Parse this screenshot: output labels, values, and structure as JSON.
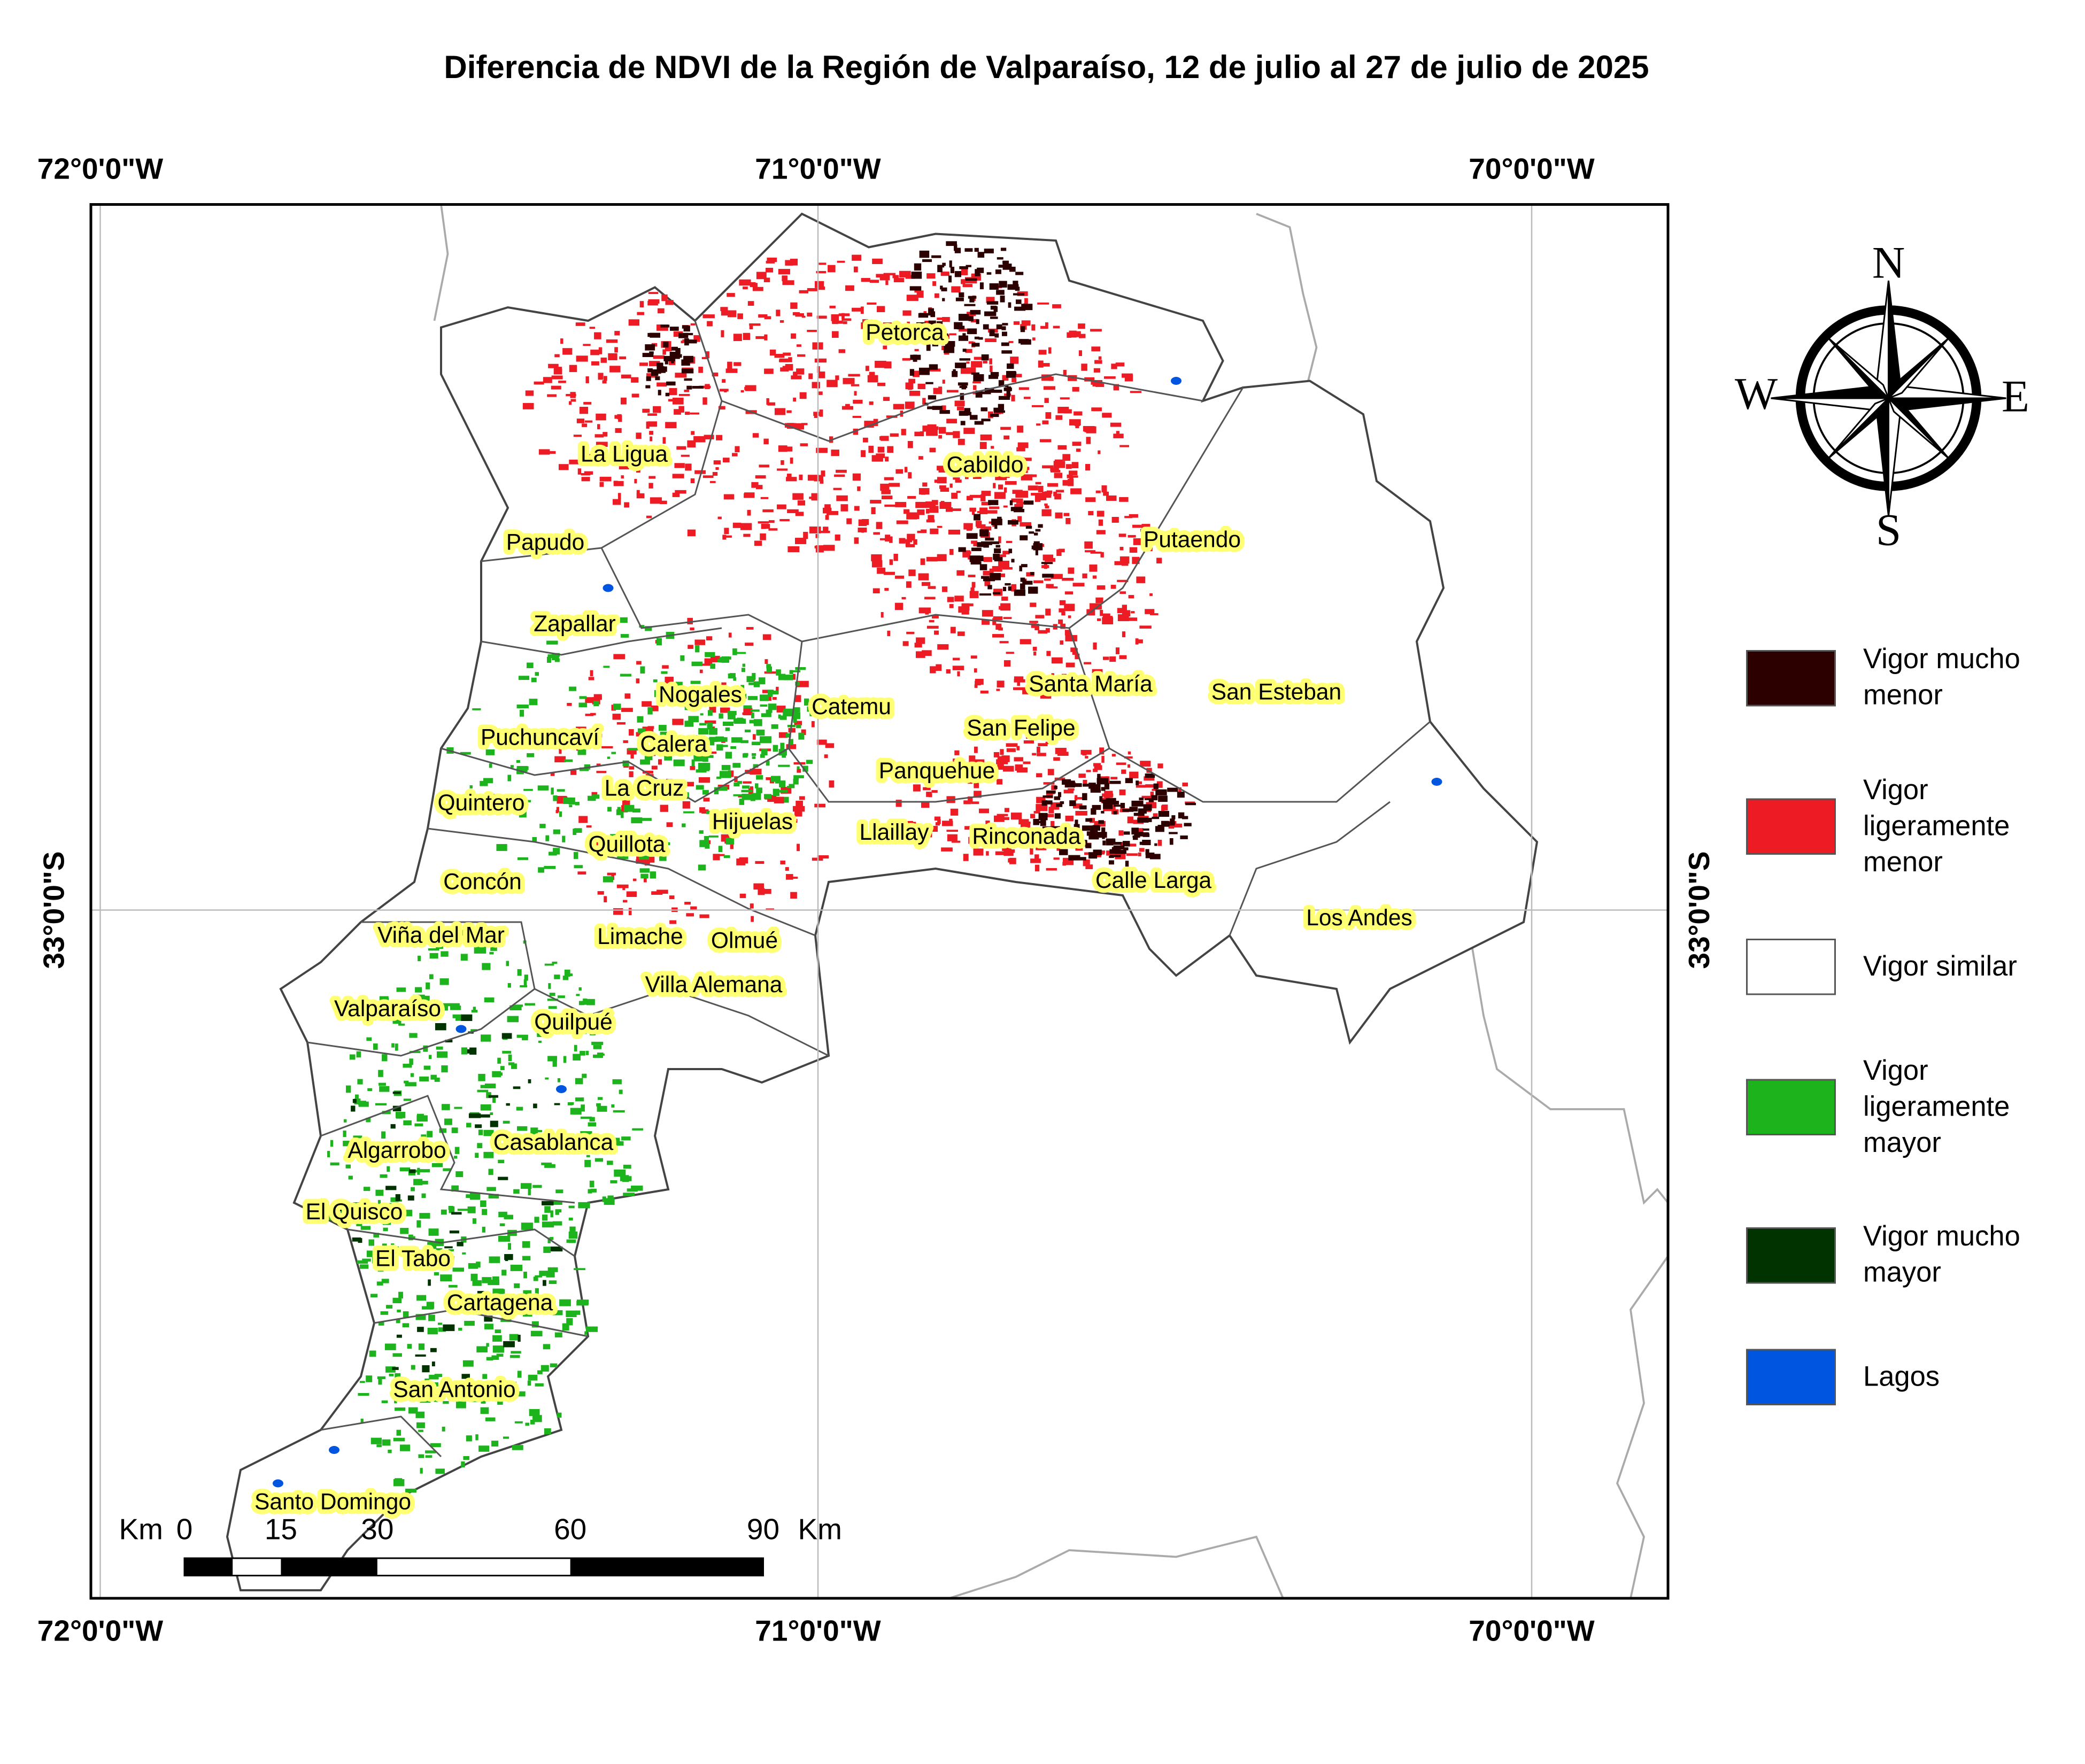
{
  "title": "Diferencia de NDVI de la Región de Valparaíso, 12 de julio al 27 de julio de 2025",
  "graticule": {
    "top": [
      "72°0'0\"W",
      "71°0'0\"W",
      "70°0'0\"W"
    ],
    "bottom": [
      "72°0'0\"W",
      "71°0'0\"W",
      "70°0'0\"W"
    ],
    "left": [
      "33°0'0\"S"
    ],
    "right": [
      "33°0'0\"S"
    ]
  },
  "places": [
    "Petorca",
    "La Ligua",
    "Cabildo",
    "Papudo",
    "Putaendo",
    "Zapallar",
    "Nogales",
    "Catemu",
    "Santa María",
    "San Esteban",
    "Puchuncaví",
    "Calera",
    "San Felipe",
    "Panquehue",
    "La Cruz",
    "Quintero",
    "Hijuelas",
    "Llaillay",
    "Rinconada",
    "Quillota",
    "Concón",
    "Calle Larga",
    "Los Andes",
    "Viña del Mar",
    "Limache",
    "Olmué",
    "Villa Alemana",
    "Valparaíso",
    "Quilpué",
    "Casablanca",
    "Algarrobo",
    "El Quisco",
    "El Tabo",
    "Cartagena",
    "San Antonio",
    "Santo Domingo"
  ],
  "compass": {
    "north": "N",
    "south": "S",
    "east": "E",
    "west": "W"
  },
  "legend": [
    {
      "label": "Vigor mucho menor",
      "color": "#2d0000"
    },
    {
      "label": "Vigor ligeramente menor",
      "color": "#ed1c24"
    },
    {
      "label": "Vigor similar",
      "color": "#ffffff"
    },
    {
      "label": "Vigor ligeramente mayor",
      "color": "#1db31d"
    },
    {
      "label": "Vigor mucho mayor",
      "color": "#003300"
    },
    {
      "label": "Lagos",
      "color": "#0055e0"
    }
  ],
  "scale_bar": {
    "unit": "Km",
    "ticks": [
      0,
      15,
      30,
      60,
      90
    ]
  }
}
